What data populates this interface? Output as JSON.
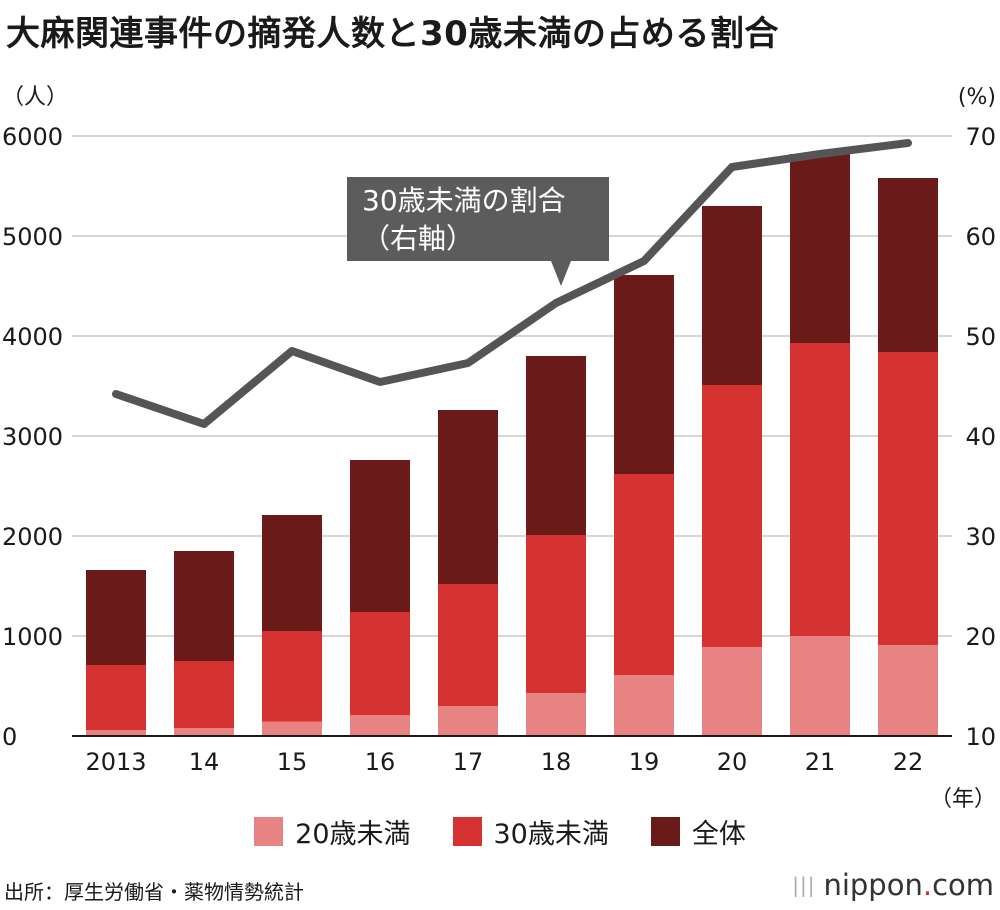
{
  "title": "大麻関連事件の摘発人数と30歳未満の占める割合",
  "source": "出所：厚生労働省・薬物情勢統計",
  "logo": {
    "name": "nippon",
    "dot": ".",
    "suffix": "com"
  },
  "annotation": {
    "line1": "30歳未満の割合",
    "line2": "（右軸）"
  },
  "colors": {
    "under20": "#e88383",
    "under30": "#d73232",
    "total": "#6b1a1a",
    "line": "#555555",
    "callout": "#5c5c5c"
  },
  "chart_data": {
    "type": "bar",
    "categories": [
      "2013",
      "14",
      "15",
      "16",
      "17",
      "18",
      "19",
      "20",
      "21",
      "22"
    ],
    "series": [
      {
        "name": "20歳未満",
        "values": [
          60,
          80,
          145,
          210,
          300,
          430,
          610,
          890,
          1000,
          910
        ]
      },
      {
        "name": "30歳未満",
        "values": [
          710,
          750,
          1050,
          1240,
          1520,
          2010,
          2620,
          3510,
          3930,
          3840
        ]
      },
      {
        "name": "全体",
        "values": [
          1660,
          1850,
          2210,
          2760,
          3260,
          3800,
          4610,
          5300,
          5820,
          5580
        ]
      }
    ],
    "line_series": {
      "name": "30歳未満の割合",
      "axis": "right",
      "values": [
        44.2,
        41.2,
        48.5,
        45.4,
        47.3,
        53.3,
        57.5,
        66.9,
        68.2,
        69.3
      ]
    },
    "ylabel_left": "（人）",
    "ylabel_right": "(%)",
    "xlabel": "（年）",
    "ylim_left": [
      0,
      6000
    ],
    "ylim_right": [
      10,
      70
    ],
    "yticks_left": [
      "0",
      "1000",
      "2000",
      "3000",
      "4000",
      "5000",
      "6000"
    ],
    "yticks_right": [
      "10",
      "20",
      "30",
      "40",
      "50",
      "60",
      "70"
    ],
    "grid": true,
    "legend_position": "bottom"
  }
}
